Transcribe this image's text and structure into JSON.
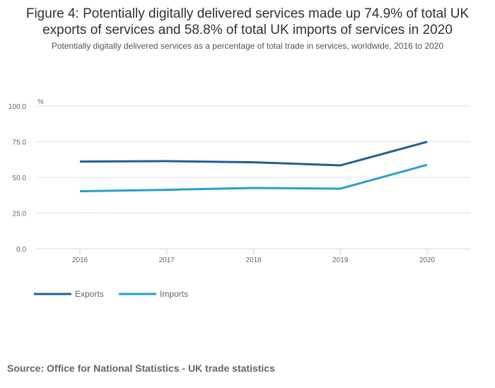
{
  "chart_data": {
    "type": "line",
    "title": "Figure 4: Potentially digitally delivered services made up 74.9% of total UK exports of services and 58.8% of total UK imports of services in 2020",
    "title_lines": [
      "Figure 4: Potentially digitally delivered services made up 74.9% of total UK",
      "exports of services and 58.8% of total UK imports of services in 2020"
    ],
    "subtitle": "Potentially digitally delivered services as a percentage of total trade in services, worldwide, 2016 to 2020",
    "xlabel": "",
    "ylabel": "%",
    "x": [
      "2016",
      "2017",
      "2018",
      "2019",
      "2020"
    ],
    "ylim": [
      0,
      100
    ],
    "yticks": [
      0,
      25,
      50,
      75,
      100
    ],
    "ytick_labels": [
      "0.0",
      "25.0",
      "50.0",
      "75.0",
      "100.0"
    ],
    "grid": true,
    "legend_position": "bottom-left",
    "series": [
      {
        "name": "Exports",
        "color": "#206095",
        "values": [
          61.1,
          61.4,
          60.6,
          58.4,
          74.9
        ]
      },
      {
        "name": "Imports",
        "color": "#27a0cc",
        "values": [
          40.3,
          41.3,
          42.6,
          42.1,
          58.8
        ]
      }
    ],
    "source": "Source: Office for National Statistics - UK trade statistics"
  }
}
